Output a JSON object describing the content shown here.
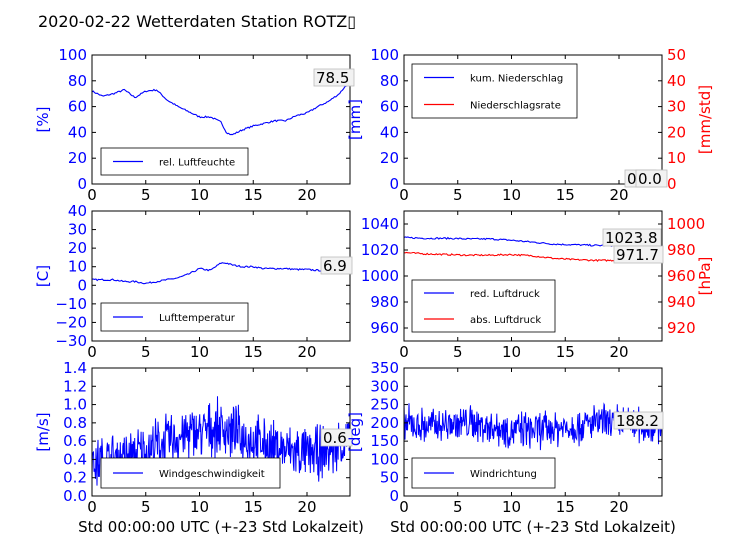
{
  "title": "2020-02-22 Wetterdaten Station ROTZ▯",
  "colors": {
    "primary": "#0000ff",
    "secondary": "#ff0000",
    "axis": "#000000"
  },
  "chart_data": [
    {
      "id": "humidity",
      "type": "line",
      "ylabel": "[%]",
      "xlabel": "",
      "xlim": [
        0,
        24
      ],
      "ylim": [
        0,
        100
      ],
      "xticks": [
        "0",
        "5",
        "10",
        "15",
        "20"
      ],
      "yticks": [
        "0",
        "20",
        "40",
        "60",
        "80",
        "100"
      ],
      "annotations": [
        "78.5"
      ],
      "legend_position": "lower-left",
      "series": [
        {
          "name": "rel. Luftfeuchte",
          "color": "#0000ff",
          "x": [
            0,
            1,
            2,
            3,
            4,
            5,
            6,
            7,
            8,
            9,
            10,
            11,
            12,
            12.5,
            13,
            14,
            15,
            16,
            17,
            18,
            19,
            20,
            21,
            22,
            23,
            23.5,
            24
          ],
          "y": [
            72,
            68,
            70,
            73,
            67,
            72,
            73,
            65,
            60,
            56,
            52,
            52,
            48,
            40,
            38,
            42,
            45,
            47,
            49,
            49,
            53,
            55,
            60,
            64,
            70,
            75,
            78.5
          ]
        }
      ]
    },
    {
      "id": "precipitation",
      "type": "line",
      "ylabel": "[mm]",
      "ylabel2": "[mm/std]",
      "xlabel": "",
      "xlim": [
        0,
        24
      ],
      "ylim": [
        0,
        100
      ],
      "ylim2": [
        0,
        50
      ],
      "xticks": [
        "0",
        "5",
        "10",
        "15",
        "20"
      ],
      "yticks": [
        "0",
        "20",
        "40",
        "60",
        "80",
        "100"
      ],
      "yticks2": [
        "0",
        "10",
        "20",
        "30",
        "40",
        "50"
      ],
      "annotations": [
        "0.0",
        "0.0"
      ],
      "legend_position": "upper-left",
      "series": [
        {
          "name": "kum. Niederschlag",
          "color": "#0000ff",
          "axis": "left",
          "x": [
            0,
            24
          ],
          "y": [
            0,
            0
          ]
        },
        {
          "name": "Niederschlagsrate",
          "color": "#ff0000",
          "axis": "right",
          "x": [
            0,
            24
          ],
          "y": [
            0,
            0
          ]
        }
      ]
    },
    {
      "id": "temperature",
      "type": "line",
      "ylabel": "[C]",
      "xlabel": "",
      "xlim": [
        0,
        24
      ],
      "ylim": [
        -30,
        40
      ],
      "xticks": [
        "0",
        "5",
        "10",
        "15",
        "20"
      ],
      "yticks": [
        "−30",
        "−20",
        "−10",
        "0",
        "10",
        "20",
        "30",
        "40"
      ],
      "annotations": [
        "6.9"
      ],
      "legend_position": "lower-left",
      "series": [
        {
          "name": "Lufttemperatur",
          "color": "#0000ff",
          "x": [
            0,
            1,
            2,
            3,
            4,
            5,
            6,
            7,
            8,
            9,
            10,
            11,
            12,
            12.5,
            13,
            14,
            15,
            16,
            17,
            18,
            19,
            20,
            21,
            22,
            23,
            24
          ],
          "y": [
            3,
            3,
            3,
            2,
            2,
            1,
            2,
            3,
            4,
            6,
            9,
            8,
            12,
            12,
            11,
            10,
            10,
            9,
            9,
            9,
            8.5,
            8.5,
            8,
            8,
            7.5,
            6.9
          ]
        }
      ]
    },
    {
      "id": "pressure",
      "type": "line",
      "ylabel": "",
      "ylabel2": "[hPa]",
      "xlabel": "",
      "xlim": [
        0,
        24
      ],
      "ylim": [
        950,
        1050
      ],
      "ylim2": [
        910,
        1010
      ],
      "xticks": [
        "0",
        "5",
        "10",
        "15",
        "20"
      ],
      "yticks": [
        "960",
        "980",
        "1000",
        "1020",
        "1040"
      ],
      "yticks2": [
        "920",
        "940",
        "960",
        "980",
        "1000"
      ],
      "annotations": [
        "1023.8",
        "971.7"
      ],
      "legend_position": "lower-left",
      "series": [
        {
          "name": "red. Luftdruck",
          "color": "#0000ff",
          "axis": "left",
          "x": [
            0,
            2,
            4,
            6,
            8,
            10,
            12,
            14,
            16,
            18,
            20,
            22,
            24
          ],
          "y": [
            1029.5,
            1029,
            1029,
            1028.5,
            1028.5,
            1027.5,
            1026,
            1024.5,
            1024,
            1023.5,
            1023.5,
            1024,
            1023.8
          ]
        },
        {
          "name": "abs. Luftdruck",
          "color": "#ff0000",
          "axis": "right",
          "x": [
            0,
            2,
            4,
            6,
            8,
            10,
            12,
            14,
            16,
            18,
            20,
            22,
            24
          ],
          "y": [
            978,
            977,
            976.5,
            976,
            976,
            976.5,
            975.5,
            973.5,
            972.5,
            972,
            972,
            972.5,
            971.7
          ]
        }
      ]
    },
    {
      "id": "windspeed",
      "type": "line",
      "ylabel": "[m/s]",
      "xlabel": "Std 00:00:00 UTC (+-23 Std Lokalzeit)",
      "xlim": [
        0,
        24
      ],
      "ylim": [
        0,
        1.4
      ],
      "xticks": [
        "0",
        "5",
        "10",
        "15",
        "20"
      ],
      "yticks": [
        "0.0",
        "0.2",
        "0.4",
        "0.6",
        "0.8",
        "1.0",
        "1.2",
        "1.4"
      ],
      "annotations": [
        "0.6"
      ],
      "legend_position": "lower-left",
      "series": [
        {
          "name": "Windgeschwindigkeit",
          "color": "#0000ff",
          "style": "noisy",
          "x": [
            0,
            2,
            4,
            6,
            8,
            10,
            12,
            14,
            16,
            18,
            20,
            22,
            24
          ],
          "y": [
            0.35,
            0.4,
            0.45,
            0.55,
            0.65,
            0.7,
            0.75,
            0.65,
            0.55,
            0.5,
            0.45,
            0.5,
            0.6
          ],
          "amplitude": 0.35
        }
      ]
    },
    {
      "id": "winddirection",
      "type": "line",
      "ylabel": "[deg]",
      "xlabel": "Std 00:00:00 UTC (+-23 Std Lokalzeit)",
      "xlim": [
        0,
        24
      ],
      "ylim": [
        0,
        350
      ],
      "xticks": [
        "0",
        "5",
        "10",
        "15",
        "20"
      ],
      "yticks": [
        "0",
        "50",
        "100",
        "150",
        "200",
        "250",
        "300",
        "350"
      ],
      "annotations": [
        "188.2"
      ],
      "legend_position": "lower-left",
      "series": [
        {
          "name": "Windrichtung",
          "color": "#0000ff",
          "style": "noisy",
          "x": [
            0,
            2,
            4,
            6,
            8,
            10,
            12,
            14,
            16,
            18,
            20,
            22,
            24
          ],
          "y": [
            200,
            190,
            195,
            200,
            190,
            180,
            180,
            185,
            190,
            200,
            200,
            195,
            188.2
          ],
          "amplitude": 60
        }
      ]
    }
  ]
}
